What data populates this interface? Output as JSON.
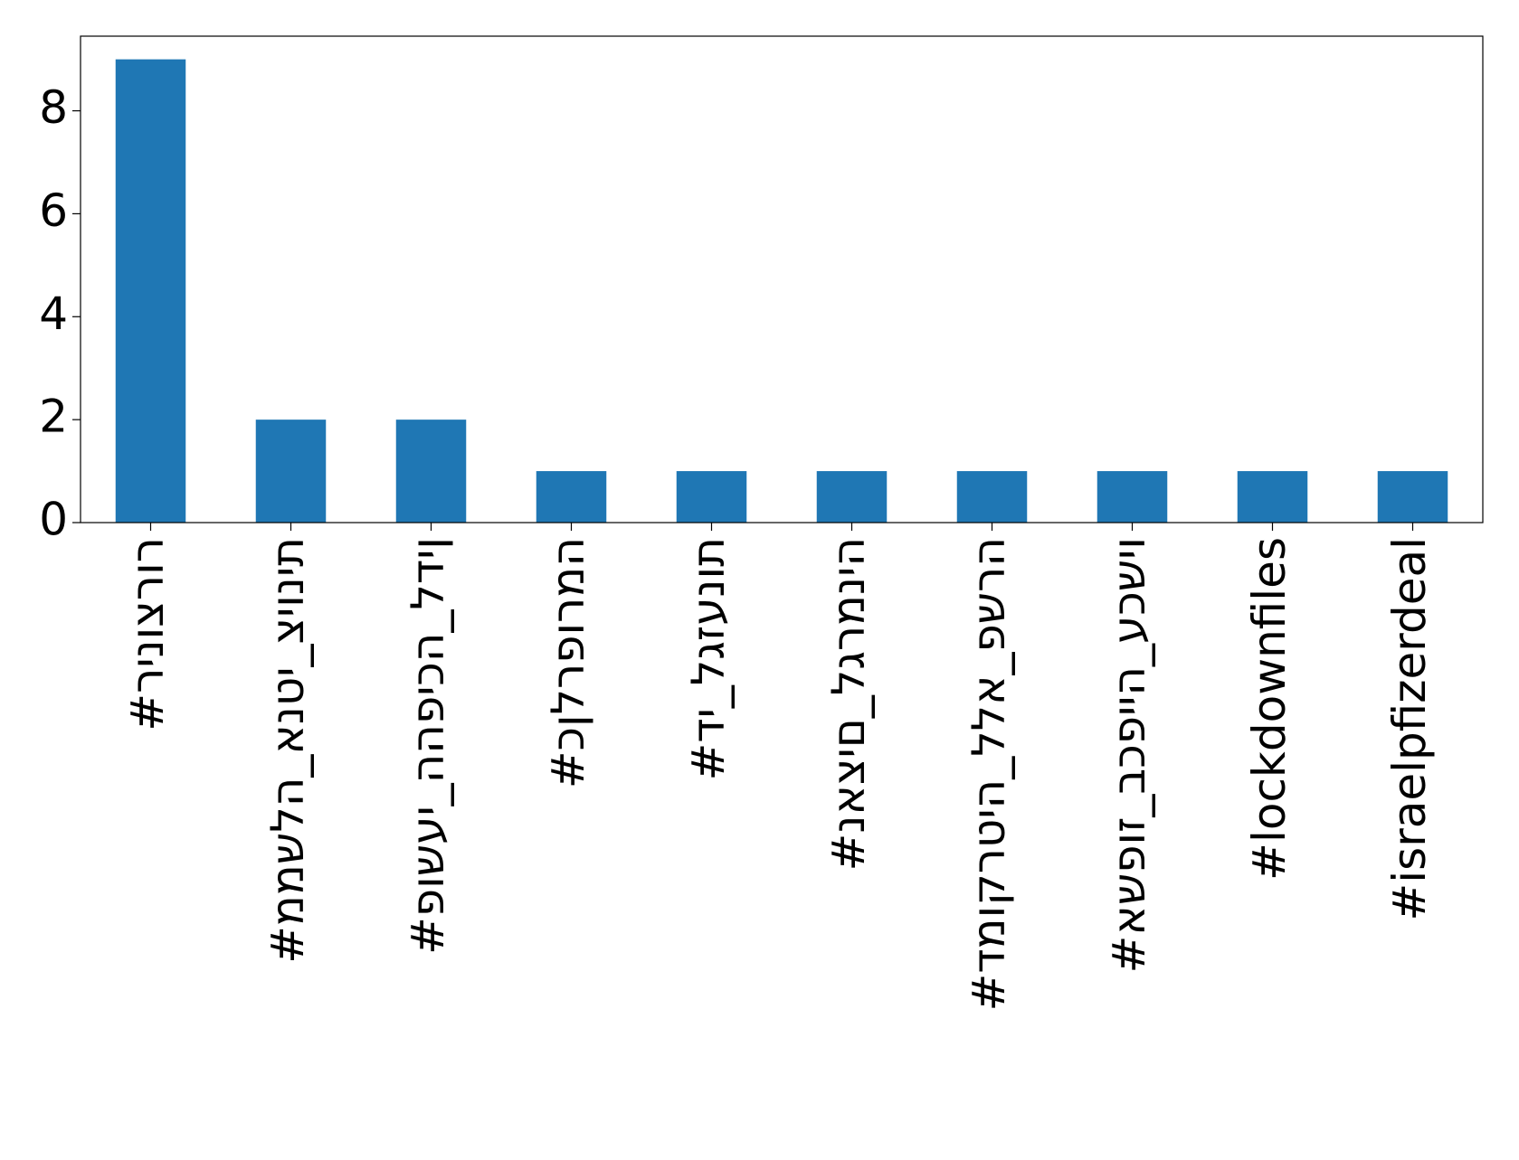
{
  "chart_data": {
    "type": "bar",
    "categories": [
      "#רינוצרור",
      "#ממשלה_אנטי_ציונית",
      "#פושעי_ההפיכה_לדין",
      "#כןלרפורמה",
      "#די_לגזענות",
      "#נאצים_לגרמניה",
      "#דמוקרטיה_ללא_פשרה",
      "#אשפוז_בכפייה_עכשיו",
      "#lockdownfiles",
      "#israelpfizerdeal"
    ],
    "values": [
      9,
      2,
      2,
      1,
      1,
      1,
      1,
      1,
      1,
      1
    ],
    "color": "#1f77b4",
    "ylim": [
      0,
      9.45
    ],
    "yticks": [
      0,
      2,
      4,
      6,
      8
    ],
    "grid": false
  }
}
